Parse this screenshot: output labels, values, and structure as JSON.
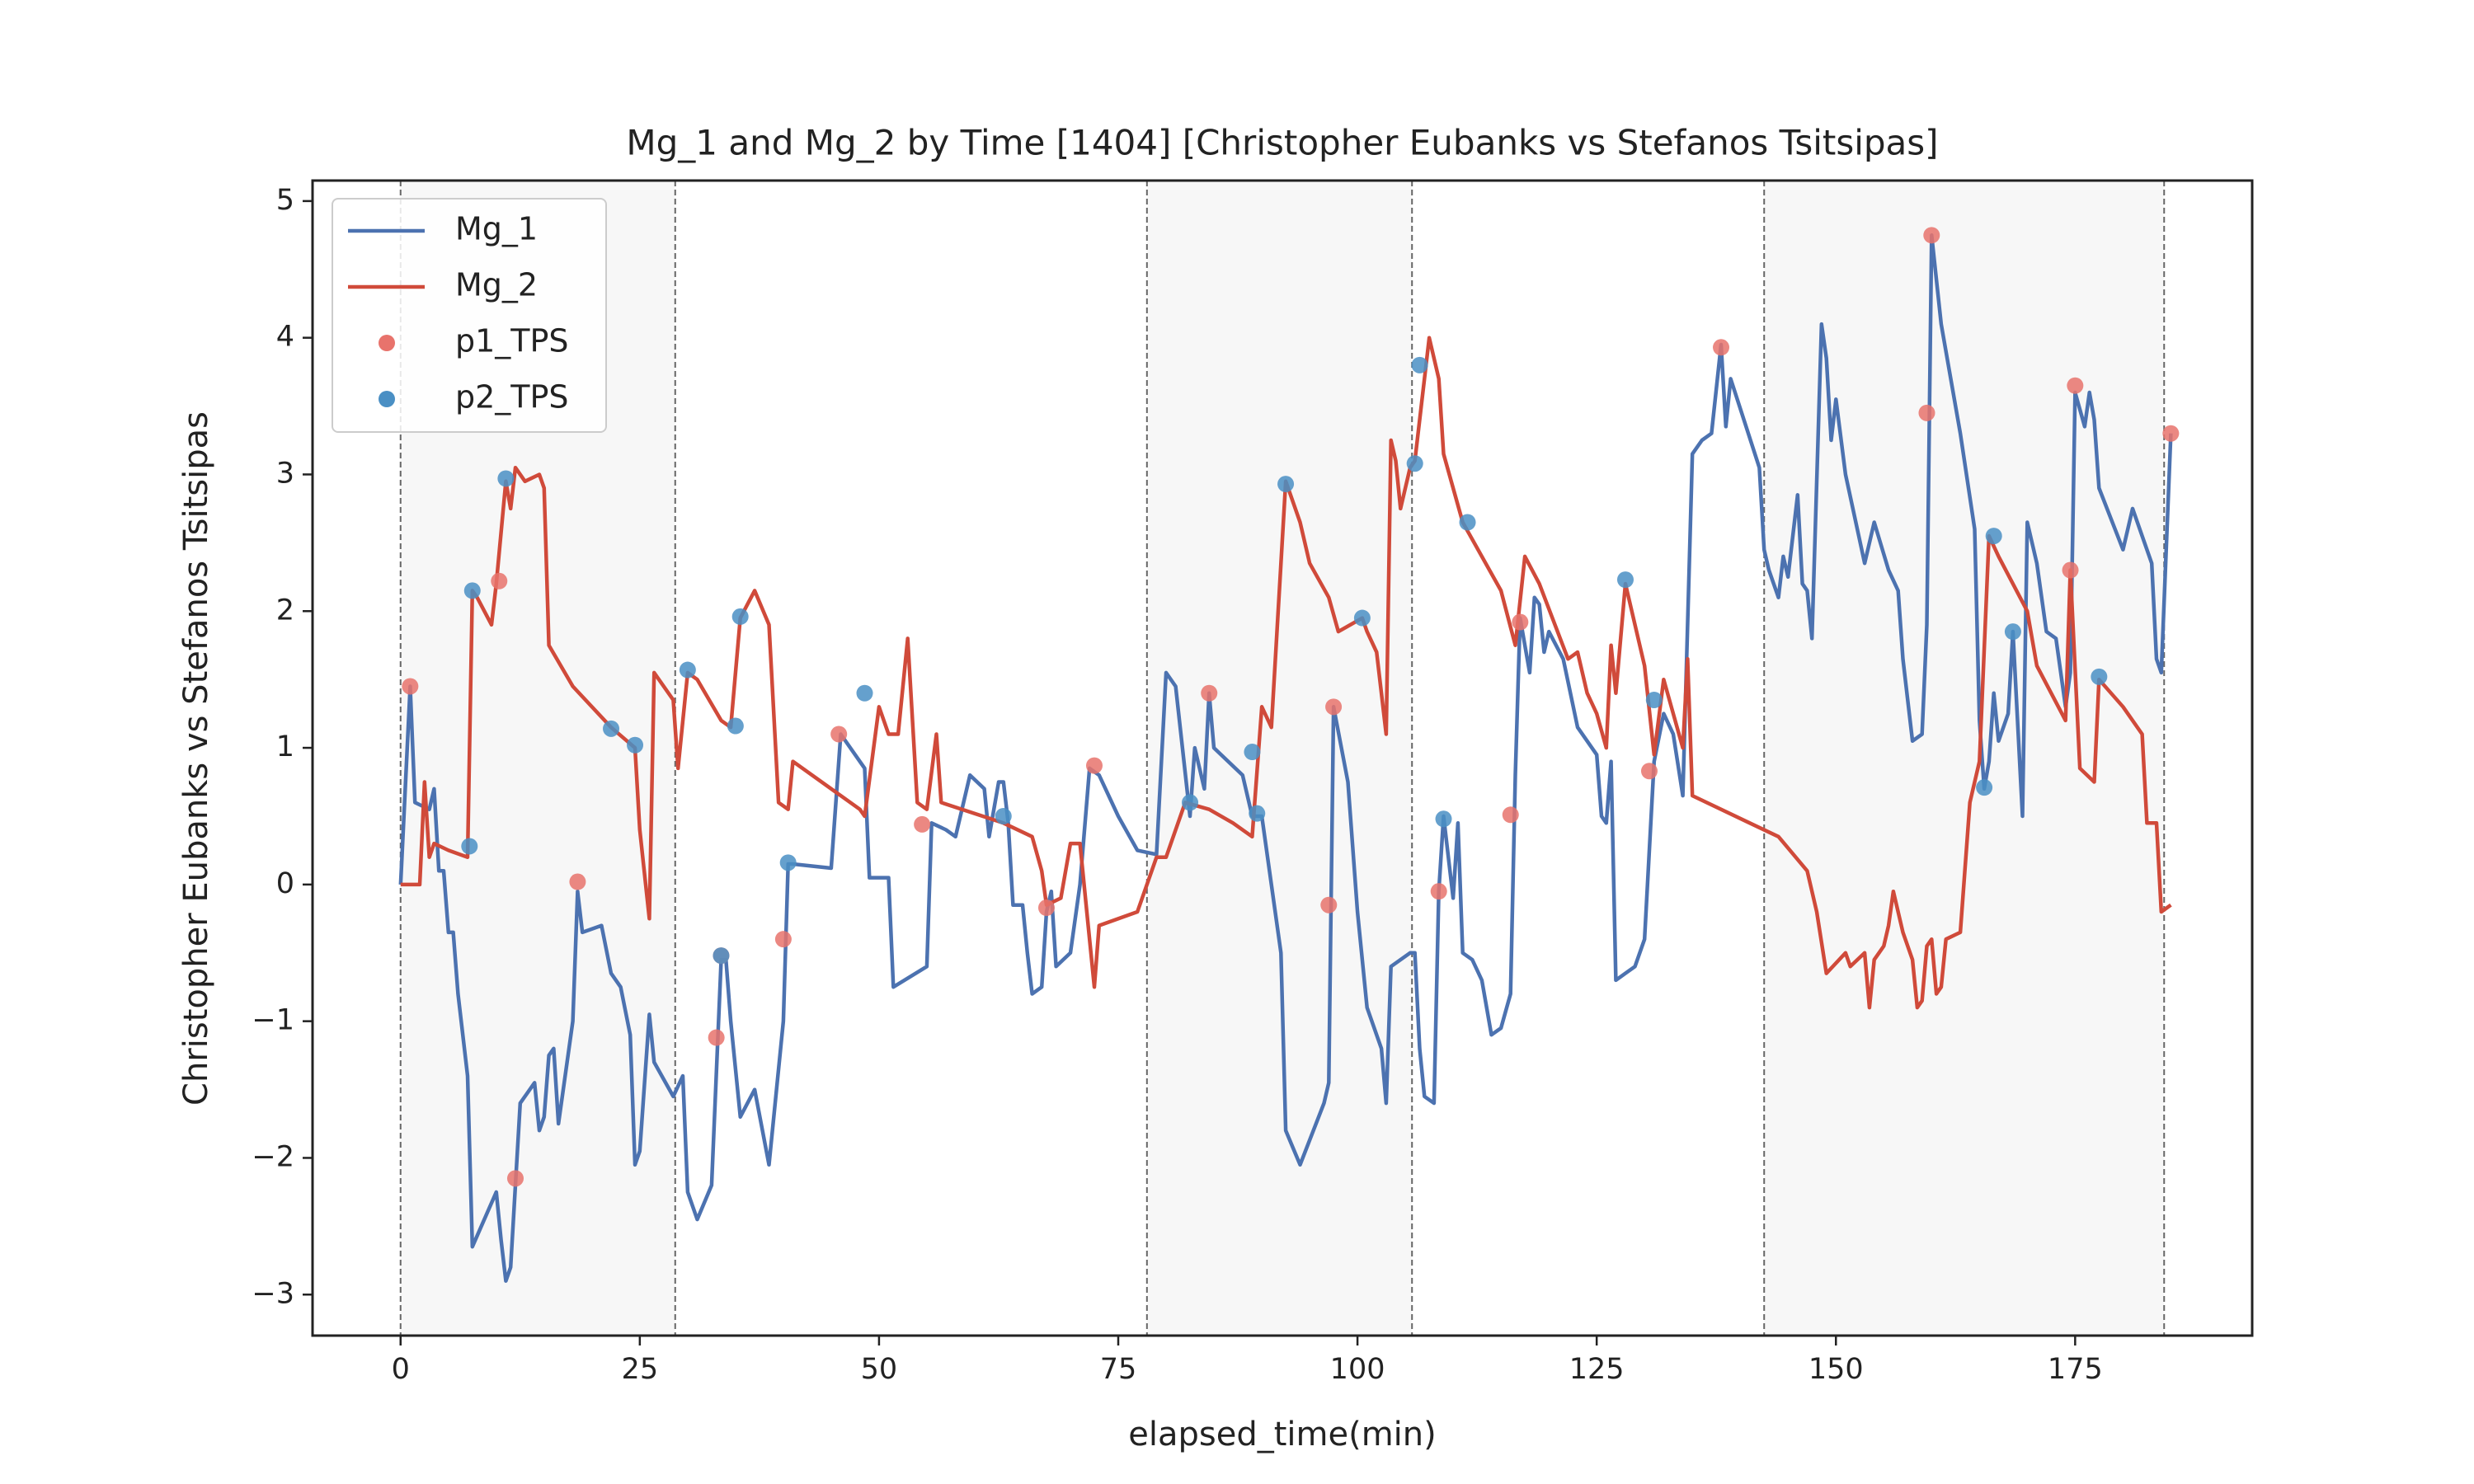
{
  "chart_data": {
    "type": "line",
    "title": "Mg_1 and Mg_2 by Time [1404] [Christopher Eubanks vs Stefanos Tsitsipas]",
    "x_label": "elapsed_time(min)",
    "y_label": "Christopher Eubanks vs Stefanos Tsitsipas",
    "xlim": [
      -9.2,
      193.5
    ],
    "ylim": [
      -3.3,
      5.15
    ],
    "xticks": [
      0,
      25,
      50,
      75,
      100,
      125,
      150,
      175
    ],
    "yticks": [
      {
        "value": -3,
        "label": "−3"
      },
      {
        "value": -2,
        "label": "−2"
      },
      {
        "value": -1,
        "label": "−1"
      },
      0,
      1,
      2,
      3,
      4,
      5
    ],
    "legend": "upper left",
    "set_boundaries": [
      0,
      28.7,
      78,
      105.7,
      142.5,
      184.3
    ],
    "shade_color": "#f7f7f7",
    "series": [
      {
        "name": "Mg_1",
        "kind": "line",
        "color": "#4c72b0",
        "x": [
          0,
          1,
          1.5,
          3,
          3.5,
          4,
          4.5,
          5,
          5.5,
          6,
          7,
          7.5,
          10,
          10.5,
          11,
          11.5,
          12,
          12.5,
          14,
          14.5,
          15,
          15.5,
          16,
          16.5,
          18,
          18.5,
          19,
          21,
          22,
          23,
          24,
          24.5,
          25,
          26,
          26.5,
          28.5,
          29.5,
          30,
          31,
          32.5,
          33.5,
          34,
          34.5,
          35.5,
          37,
          38.5,
          40,
          40.5,
          41,
          45,
          46,
          48.5,
          49,
          51,
          51.5,
          55,
          55.5,
          57,
          58,
          59.5,
          61,
          61.5,
          62.5,
          63,
          63.5,
          64,
          65,
          65.5,
          66,
          67,
          67.5,
          68,
          68.5,
          70,
          71,
          72,
          73,
          75,
          77,
          79,
          80,
          81,
          82.5,
          83,
          84,
          84.5,
          85,
          88,
          89,
          90,
          91,
          92,
          92.5,
          94,
          96.5,
          97,
          97.5,
          99,
          100,
          101,
          102.5,
          103,
          103.5,
          105.5,
          106,
          106.5,
          107,
          108,
          108.5,
          109,
          109.5,
          110,
          110.5,
          111,
          112,
          113,
          114,
          115,
          116,
          116.5,
          117,
          118,
          118.5,
          119,
          119.5,
          120,
          121.5,
          123,
          125,
          125.5,
          126,
          126.5,
          127,
          128,
          129,
          130,
          131,
          132,
          133,
          134,
          135,
          136,
          137,
          138,
          138.5,
          139,
          142,
          142.5,
          143,
          144,
          144.5,
          145,
          146,
          146.5,
          147,
          147.5,
          148.5,
          149,
          149.5,
          150,
          151,
          153,
          154,
          155.5,
          156.5,
          157,
          158,
          159,
          159.5,
          160,
          161,
          163,
          164.5,
          165,
          165.5,
          166,
          166.5,
          167,
          168,
          168.5,
          169.5,
          170,
          171,
          172,
          173,
          174,
          174.5,
          175,
          176,
          176.5,
          177,
          177.5,
          180,
          181,
          182,
          183,
          183.5,
          184,
          185
        ],
        "values": [
          0,
          1.45,
          0.6,
          0.55,
          0.7,
          0.1,
          0.1,
          -0.35,
          -0.35,
          -0.8,
          -1.4,
          -2.65,
          -2.25,
          -2.6,
          -2.9,
          -2.8,
          -2.2,
          -1.6,
          -1.45,
          -1.8,
          -1.7,
          -1.25,
          -1.2,
          -1.75,
          -1,
          -0.05,
          -0.35,
          -0.3,
          -0.65,
          -0.75,
          -1.1,
          -2.05,
          -1.95,
          -0.95,
          -1.3,
          -1.55,
          -1.4,
          -2.25,
          -2.45,
          -2.2,
          -0.55,
          -0.55,
          -1,
          -1.7,
          -1.5,
          -2.05,
          -1,
          0.15,
          0.15,
          0.12,
          1.1,
          0.85,
          0.05,
          0.05,
          -0.75,
          -0.6,
          0.45,
          0.4,
          0.35,
          0.8,
          0.7,
          0.35,
          0.75,
          0.75,
          0.45,
          -0.15,
          -0.15,
          -0.5,
          -0.8,
          -0.75,
          -0.2,
          -0.05,
          -0.6,
          -0.5,
          0,
          0.85,
          0.8,
          0.5,
          0.25,
          0.22,
          1.55,
          1.45,
          0.5,
          1,
          0.7,
          1.4,
          1,
          0.8,
          0.5,
          0.5,
          0,
          -0.5,
          -1.8,
          -2.05,
          -1.6,
          -1.45,
          1.3,
          0.75,
          -0.2,
          -0.9,
          -1.2,
          -1.6,
          -0.6,
          -0.5,
          -0.5,
          -1.2,
          -1.55,
          -1.6,
          -0.05,
          0.5,
          0.2,
          -0.1,
          0.45,
          -0.5,
          -0.55,
          -0.7,
          -1.1,
          -1.05,
          -0.8,
          0.8,
          1.95,
          1.55,
          2.1,
          2.05,
          1.7,
          1.85,
          1.65,
          1.15,
          0.95,
          0.5,
          0.45,
          0.9,
          -0.7,
          -0.65,
          -0.6,
          -0.4,
          0.9,
          1.25,
          1.1,
          0.65,
          3.15,
          3.25,
          3.3,
          3.95,
          3.35,
          3.7,
          3.05,
          2.45,
          2.3,
          2.1,
          2.4,
          2.25,
          2.85,
          2.2,
          2.15,
          1.8,
          4.1,
          3.85,
          3.25,
          3.55,
          3,
          2.35,
          2.65,
          2.3,
          2.15,
          1.65,
          1.05,
          1.1,
          1.9,
          4.75,
          4.1,
          3.3,
          2.6,
          1.2,
          0.7,
          0.9,
          1.4,
          1.05,
          1.25,
          1.85,
          0.5,
          2.65,
          2.35,
          1.85,
          1.8,
          1.3,
          1.55,
          3.6,
          3.35,
          3.6,
          3.4,
          2.9,
          2.45,
          2.75,
          2.55,
          2.35,
          1.65,
          1.55,
          3.3
        ]
      },
      {
        "name": "Mg_2",
        "kind": "line",
        "color": "#d04a3a",
        "x": [
          0,
          2,
          2.5,
          3,
          3.5,
          5,
          7,
          7.5,
          8,
          9.5,
          10,
          11,
          11.5,
          12,
          13,
          14.5,
          15,
          15.5,
          18,
          22,
          24.5,
          25,
          26,
          26.5,
          28.5,
          29,
          30,
          31,
          33.5,
          34.5,
          35.5,
          37,
          38.5,
          39.5,
          40.5,
          41,
          46,
          48,
          48.5,
          50,
          51,
          52,
          53,
          54,
          55,
          56,
          56.5,
          63,
          66,
          67,
          67.5,
          69,
          70,
          71,
          72.5,
          73,
          77,
          79,
          80,
          82,
          84.5,
          87,
          89,
          90,
          91,
          92.5,
          93,
          94,
          95,
          97,
          98,
          100.5,
          101,
          102,
          103,
          103.5,
          104,
          104.5,
          105.5,
          106,
          107.5,
          108.5,
          109,
          111,
          115,
          116.5,
          117.5,
          119,
          122,
          123,
          124,
          125,
          126,
          126.5,
          127,
          128,
          130,
          131,
          132,
          134,
          134.5,
          135,
          141,
          144,
          147,
          148,
          149,
          151,
          151.5,
          153,
          153.5,
          154,
          154.5,
          155,
          155.5,
          156,
          157,
          158,
          158.5,
          159,
          159.5,
          160,
          160.5,
          161,
          161.5,
          163,
          164,
          165,
          166,
          167,
          170,
          171,
          174,
          174.5,
          175.5,
          177,
          177.5,
          180,
          182,
          182.5,
          183.5,
          184,
          185
        ],
        "values": [
          0,
          0,
          0.75,
          0.2,
          0.3,
          0.25,
          0.2,
          2.15,
          2.1,
          1.9,
          2.2,
          2.95,
          2.75,
          3.05,
          2.95,
          3,
          2.9,
          1.75,
          1.45,
          1.15,
          1,
          0.4,
          -0.25,
          1.55,
          1.35,
          0.85,
          1.55,
          1.5,
          1.2,
          1.15,
          1.95,
          2.15,
          1.9,
          0.6,
          0.55,
          0.9,
          0.65,
          0.55,
          0.5,
          1.3,
          1.1,
          1.1,
          1.8,
          0.6,
          0.55,
          1.1,
          0.6,
          0.45,
          0.35,
          0.1,
          -0.15,
          -0.1,
          0.3,
          0.3,
          -0.75,
          -0.3,
          -0.2,
          0.2,
          0.2,
          0.6,
          0.55,
          0.45,
          0.35,
          1.3,
          1.15,
          2.95,
          2.85,
          2.65,
          2.35,
          2.1,
          1.85,
          1.95,
          1.85,
          1.7,
          1.1,
          3.25,
          3.1,
          2.75,
          3.05,
          3.1,
          4,
          3.7,
          3.15,
          2.65,
          2.15,
          1.75,
          2.4,
          2.2,
          1.65,
          1.7,
          1.4,
          1.25,
          1,
          1.75,
          1.4,
          2.2,
          1.6,
          0.95,
          1.5,
          1,
          1.65,
          0.65,
          0.45,
          0.35,
          0.1,
          -0.2,
          -0.65,
          -0.5,
          -0.6,
          -0.5,
          -0.9,
          -0.55,
          -0.5,
          -0.45,
          -0.3,
          -0.05,
          -0.35,
          -0.55,
          -0.9,
          -0.85,
          -0.45,
          -0.4,
          -0.8,
          -0.75,
          -0.4,
          -0.35,
          0.6,
          0.9,
          2.55,
          2.4,
          2,
          1.6,
          1.2,
          2.3,
          0.85,
          0.75,
          1.5,
          1.3,
          1.1,
          0.45,
          0.45,
          -0.2,
          -0.15
        ]
      },
      {
        "name": "p1_TPS",
        "kind": "scatter",
        "color": "#e8736c",
        "x": [
          1,
          10.3,
          12,
          18.5,
          33,
          33.5,
          40,
          45.8,
          54.5,
          67.5,
          72.5,
          84.5,
          97,
          97.5,
          108.5,
          116,
          117,
          130.5,
          138,
          159.5,
          160,
          174.5,
          175,
          185
        ],
        "values": [
          1.45,
          2.22,
          -2.15,
          0.02,
          -1.12,
          -0.52,
          -0.4,
          1.1,
          0.44,
          -0.17,
          0.87,
          1.4,
          -0.15,
          1.3,
          -0.05,
          0.51,
          1.92,
          0.83,
          3.93,
          3.45,
          4.75,
          2.3,
          3.65,
          3.3
        ]
      },
      {
        "name": "p2_TPS",
        "kind": "scatter",
        "color": "#4a8fc4",
        "x": [
          7.2,
          7.5,
          11,
          22,
          24.5,
          30,
          33.5,
          35,
          35.5,
          40.5,
          48.5,
          63,
          82.5,
          89,
          89.5,
          92.5,
          100.5,
          106,
          106.5,
          109,
          111.5,
          128,
          131,
          165.5,
          166.5,
          168.5,
          177.5
        ],
        "values": [
          0.28,
          2.15,
          2.97,
          1.14,
          1.02,
          1.57,
          -0.52,
          1.16,
          1.96,
          0.16,
          1.4,
          0.5,
          0.6,
          0.97,
          0.52,
          2.93,
          1.95,
          3.08,
          3.8,
          0.48,
          2.65,
          2.23,
          1.35,
          0.71,
          2.55,
          1.85,
          1.52
        ]
      }
    ]
  }
}
